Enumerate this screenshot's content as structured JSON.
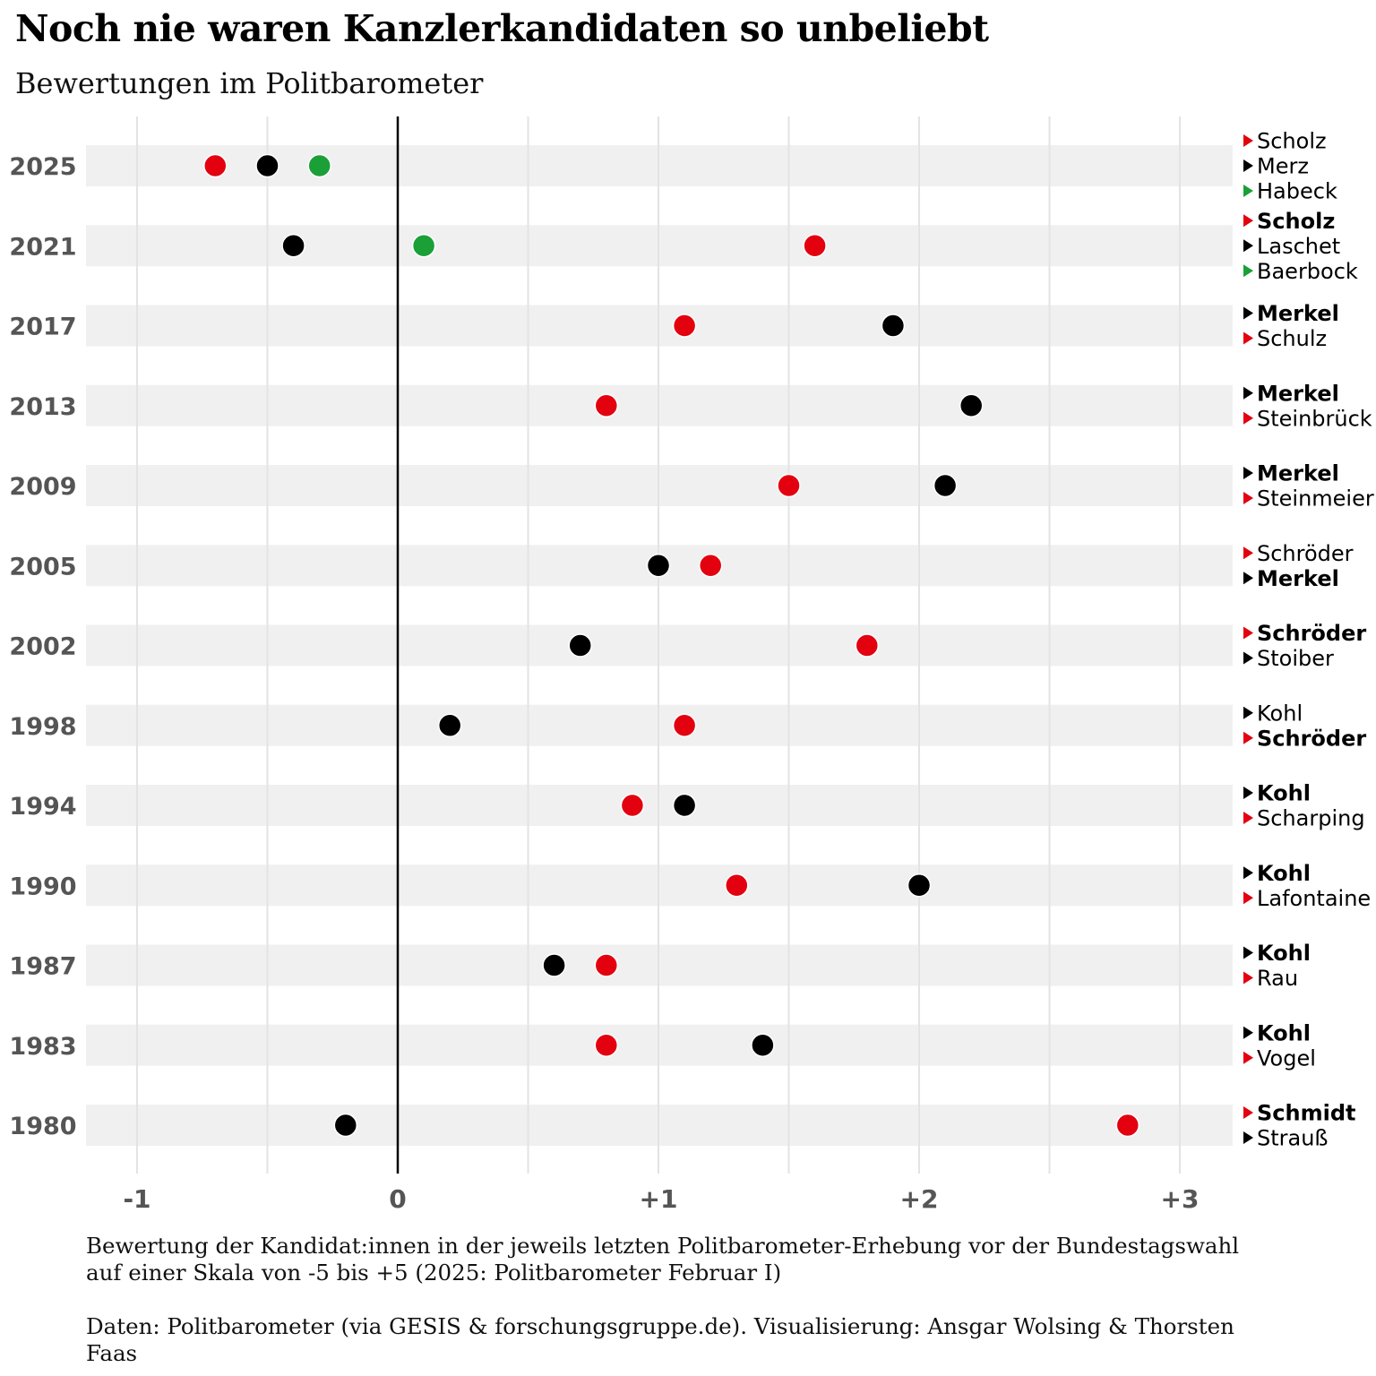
{
  "title": "Noch nie waren Kanzlerkandidaten so unbeliebt",
  "subtitle": "Bewertungen im Politbarometer",
  "caption": {
    "note": "Bewertung der Kandidat:innen in der jeweils letzten Politbarometer-Erhebung vor der Bundestagswahl auf einer Skala von -5 bis +5 (2025: Politbarometer Februar I)",
    "source": "Daten: Politbarometer (via GESIS & forschungsgruppe.de). Visualisierung: Ansgar Wolsing & Thorsten Faas"
  },
  "colors": {
    "SPD": "#e3000f",
    "Union": "#000000",
    "Gruene": "#1aa037",
    "band": "#f0f0f0",
    "grid": "#e3e3e3",
    "zero_line": "#000000"
  },
  "chart_data": {
    "type": "scatter",
    "xlim": [
      -1.2,
      3.2
    ],
    "xticks": [
      {
        "value": -1,
        "label": "-1"
      },
      {
        "value": 0,
        "label": "0"
      },
      {
        "value": 1,
        "label": "+1"
      },
      {
        "value": 2,
        "label": "+2"
      },
      {
        "value": 3,
        "label": "+3"
      }
    ],
    "minor_gridlines": [
      -0.5,
      0.5,
      1.5,
      2.5
    ],
    "reference_line": 0,
    "rows": [
      {
        "year": "2025",
        "candidates": [
          {
            "name": "Scholz",
            "party": "SPD",
            "value": -0.7,
            "bold": false
          },
          {
            "name": "Merz",
            "party": "Union",
            "value": -0.5,
            "bold": false
          },
          {
            "name": "Habeck",
            "party": "Gruene",
            "value": -0.3,
            "bold": false
          }
        ]
      },
      {
        "year": "2021",
        "candidates": [
          {
            "name": "Scholz",
            "party": "SPD",
            "value": 1.6,
            "bold": true
          },
          {
            "name": "Laschet",
            "party": "Union",
            "value": -0.4,
            "bold": false
          },
          {
            "name": "Baerbock",
            "party": "Gruene",
            "value": 0.1,
            "bold": false
          }
        ]
      },
      {
        "year": "2017",
        "candidates": [
          {
            "name": "Merkel",
            "party": "Union",
            "value": 1.9,
            "bold": true
          },
          {
            "name": "Schulz",
            "party": "SPD",
            "value": 1.1,
            "bold": false
          }
        ]
      },
      {
        "year": "2013",
        "candidates": [
          {
            "name": "Merkel",
            "party": "Union",
            "value": 2.2,
            "bold": true
          },
          {
            "name": "Steinbrück",
            "party": "SPD",
            "value": 0.8,
            "bold": false
          }
        ]
      },
      {
        "year": "2009",
        "candidates": [
          {
            "name": "Merkel",
            "party": "Union",
            "value": 2.1,
            "bold": true
          },
          {
            "name": "Steinmeier",
            "party": "SPD",
            "value": 1.5,
            "bold": false
          }
        ]
      },
      {
        "year": "2005",
        "candidates": [
          {
            "name": "Schröder",
            "party": "SPD",
            "value": 1.2,
            "bold": false
          },
          {
            "name": "Merkel",
            "party": "Union",
            "value": 1.0,
            "bold": true
          }
        ]
      },
      {
        "year": "2002",
        "candidates": [
          {
            "name": "Schröder",
            "party": "SPD",
            "value": 1.8,
            "bold": true
          },
          {
            "name": "Stoiber",
            "party": "Union",
            "value": 0.7,
            "bold": false
          }
        ]
      },
      {
        "year": "1998",
        "candidates": [
          {
            "name": "Kohl",
            "party": "Union",
            "value": 0.2,
            "bold": false
          },
          {
            "name": "Schröder",
            "party": "SPD",
            "value": 1.1,
            "bold": true
          }
        ]
      },
      {
        "year": "1994",
        "candidates": [
          {
            "name": "Kohl",
            "party": "Union",
            "value": 1.1,
            "bold": true
          },
          {
            "name": "Scharping",
            "party": "SPD",
            "value": 0.9,
            "bold": false
          }
        ]
      },
      {
        "year": "1990",
        "candidates": [
          {
            "name": "Kohl",
            "party": "Union",
            "value": 2.0,
            "bold": true
          },
          {
            "name": "Lafontaine",
            "party": "SPD",
            "value": 1.3,
            "bold": false
          }
        ]
      },
      {
        "year": "1987",
        "candidates": [
          {
            "name": "Kohl",
            "party": "Union",
            "value": 0.6,
            "bold": true
          },
          {
            "name": "Rau",
            "party": "SPD",
            "value": 0.8,
            "bold": false
          }
        ]
      },
      {
        "year": "1983",
        "candidates": [
          {
            "name": "Kohl",
            "party": "Union",
            "value": 1.4,
            "bold": true
          },
          {
            "name": "Vogel",
            "party": "SPD",
            "value": 0.8,
            "bold": false
          }
        ]
      },
      {
        "year": "1980",
        "candidates": [
          {
            "name": "Schmidt",
            "party": "SPD",
            "value": 2.8,
            "bold": true
          },
          {
            "name": "Strauß",
            "party": "Union",
            "value": -0.2,
            "bold": false
          }
        ]
      }
    ]
  }
}
